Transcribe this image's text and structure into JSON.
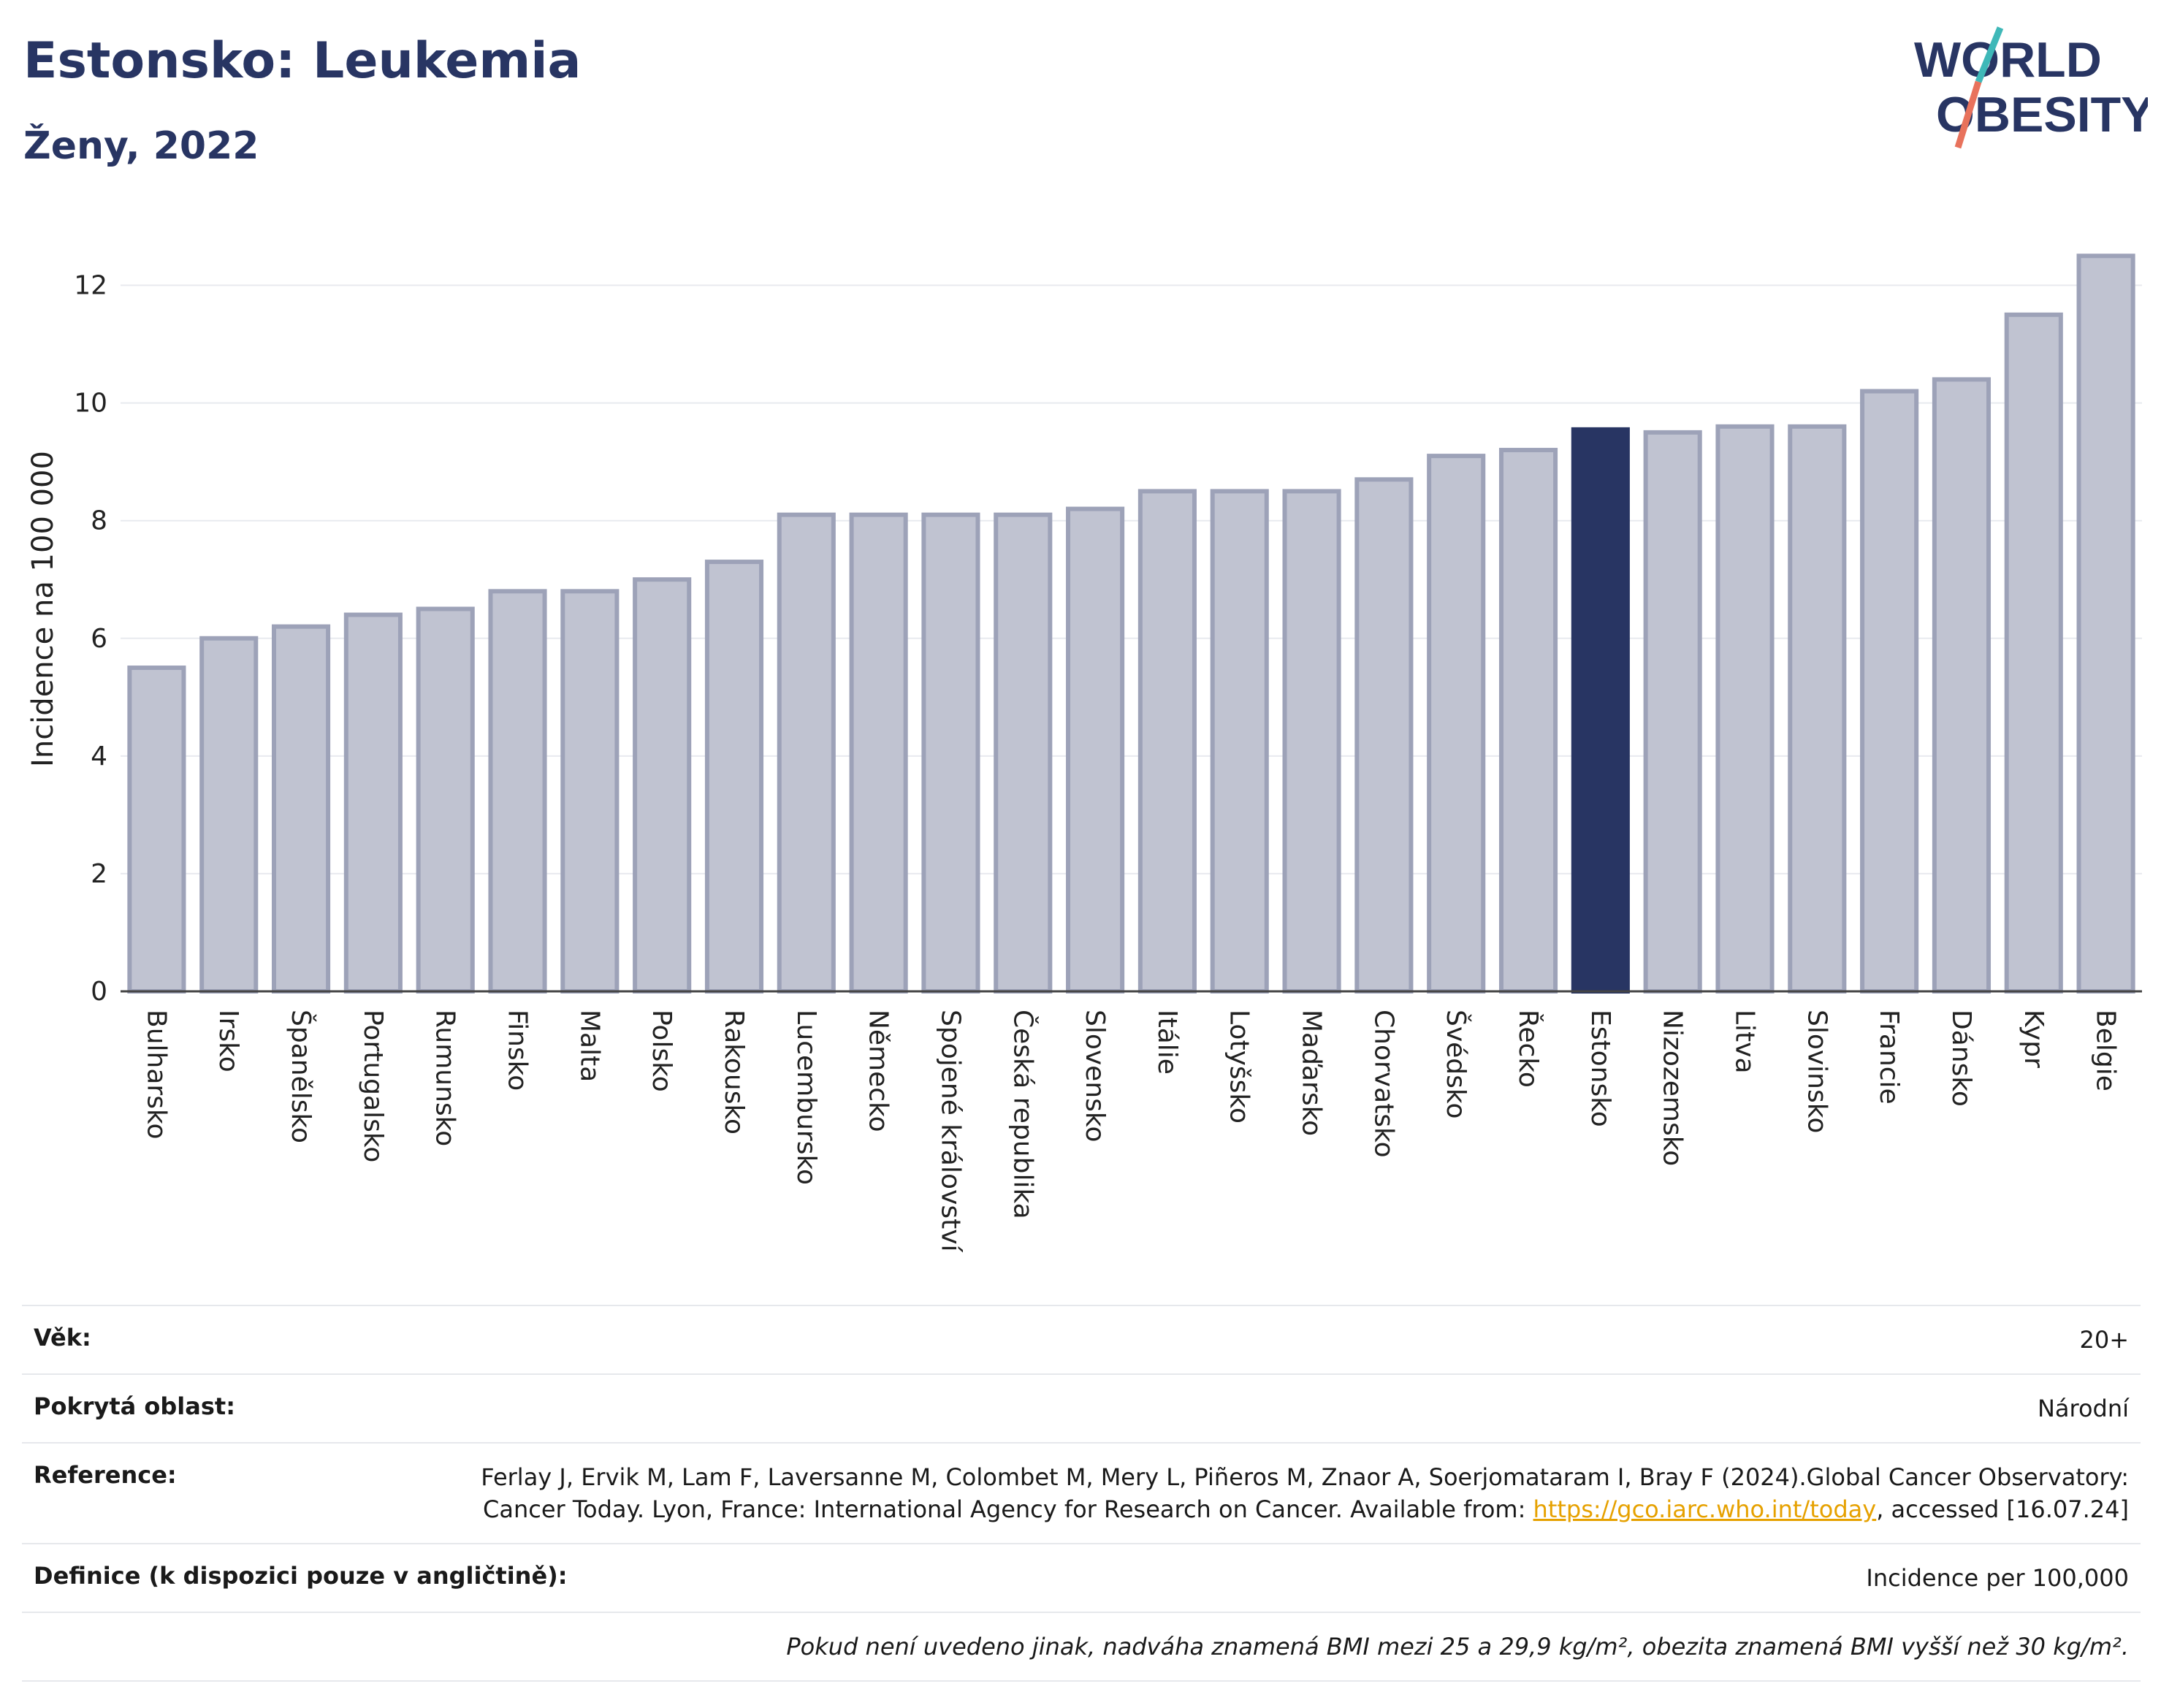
{
  "header": {
    "title": "Estonsko: Leukemia",
    "subtitle": "Ženy, 2022",
    "logo_line1": "WORLD",
    "logo_line2": "OBESITY"
  },
  "chart_data": {
    "type": "bar",
    "ylabel": "Incidence na 100 000",
    "ylim": [
      0,
      13
    ],
    "yticks": [
      0,
      2,
      4,
      6,
      8,
      10,
      12
    ],
    "grid": true,
    "highlight": "Estonsko",
    "categories": [
      "Bulharsko",
      "Irsko",
      "Španělsko",
      "Portugalsko",
      "Rumunsko",
      "Finsko",
      "Malta",
      "Polsko",
      "Rakousko",
      "Lucembursko",
      "Německo",
      "Spojené království",
      "Česká republika",
      "Slovensko",
      "Itálie",
      "Lotyšsko",
      "Maďarsko",
      "Chorvatsko",
      "Švédsko",
      "Řecko",
      "Estonsko",
      "Nizozemsko",
      "Litva",
      "Slovinsko",
      "Francie",
      "Dánsko",
      "Kypr",
      "Belgie"
    ],
    "values": [
      5.5,
      6.0,
      6.2,
      6.4,
      6.5,
      6.8,
      6.8,
      7.0,
      7.3,
      8.1,
      8.1,
      8.1,
      8.1,
      8.2,
      8.5,
      8.5,
      8.5,
      8.7,
      9.1,
      9.2,
      9.55,
      9.5,
      9.6,
      9.6,
      10.2,
      10.4,
      11.5,
      12.5
    ]
  },
  "colors": {
    "bar": "#c0c3d1",
    "bar_border": "#9da2b8",
    "highlight": "#283563",
    "title": "#283563",
    "logo_teal": "#3fb8b8",
    "logo_coral": "#e8725c"
  },
  "info": {
    "age_label": "Věk:",
    "age_value": "20+",
    "area_label": "Pokrytá oblast:",
    "area_value": "Národní",
    "ref_label": "Reference:",
    "ref_text1": "Ferlay J, Ervik M, Lam F, Laversanne M, Colombet M, Mery L, Piñeros M, Znaor A, Soerjomataram I, Bray F (2024).Global Cancer Observatory: Cancer Today. Lyon, France: International Agency for Research on Cancer. Available from: ",
    "ref_link": "https://gco.iarc.who.int/today",
    "ref_text2": ", accessed [16.07.24]",
    "def_label": "Definice (k dispozici pouze v angličtině):",
    "def_value": "Incidence per 100,000",
    "note": "Pokud není uvedeno jinak, nadváha znamená BMI mezi 25 a 29,9 kg/m², obezita znamená BMI vyšší než 30 kg/m²."
  }
}
